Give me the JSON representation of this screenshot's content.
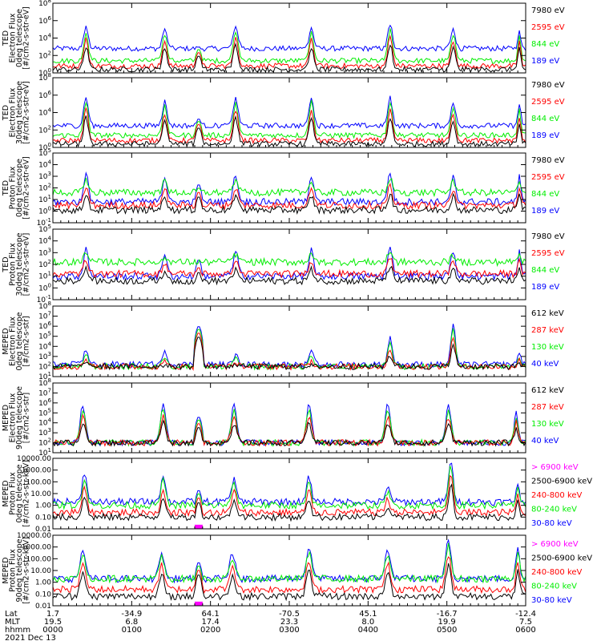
{
  "title": "",
  "date_label": "2021 Dec 13",
  "colors": {
    "black": "#000000",
    "blue": "#0000ff",
    "red": "#ff0000",
    "green": "#00ee00",
    "magenta": "#ff00ff"
  },
  "x_axis": {
    "row_labels": [
      "Lat",
      "MLT",
      "hhmm"
    ],
    "ticks": [
      {
        "lat": "1.7",
        "mlt": "19.5",
        "hhmm": "0000"
      },
      {
        "lat": "-34.9",
        "mlt": "6.8",
        "hhmm": "0100"
      },
      {
        "lat": "64.1",
        "mlt": "17.4",
        "hhmm": "0200"
      },
      {
        "lat": "-70.5",
        "mlt": "23.3",
        "hhmm": "0300"
      },
      {
        "lat": "45.1",
        "mlt": "8.0",
        "hhmm": "0400"
      },
      {
        "lat": "-16.7",
        "mlt": "19.9",
        "hhmm": "0500"
      },
      {
        "lat": "-12.4",
        "mlt": "7.5",
        "hhmm": "0600"
      }
    ]
  },
  "chart_data": [
    {
      "type": "line",
      "instrument": "TED",
      "ylabel": [
        "TED",
        "Electron Flux",
        "0deg telescope",
        "[#/cm2-s-str-eV]"
      ],
      "scale": "log",
      "ytick_labels": [
        "10^0",
        "10^2",
        "10^4",
        "10^6",
        "10^8"
      ],
      "ytick_exponents": [
        0,
        2,
        4,
        6,
        8
      ],
      "ylim_exp": [
        0,
        8
      ],
      "legend": [
        {
          "label": "7980 eV",
          "color": "black"
        },
        {
          "label": "2595 eV",
          "color": "red"
        },
        {
          "label": "844 eV",
          "color": "green"
        },
        {
          "label": "189 eV",
          "color": "blue"
        }
      ],
      "xlim_hours": [
        0,
        6
      ],
      "passes": [
        {
          "center": 0.42,
          "width": 0.12,
          "peak_exp": 5.2
        },
        {
          "center": 1.42,
          "width": 0.12,
          "peak_exp": 5.0
        },
        {
          "center": 2.32,
          "width": 0.13,
          "peak_exp": 5.4
        },
        {
          "center": 3.28,
          "width": 0.12,
          "peak_exp": 5.1
        },
        {
          "center": 4.28,
          "width": 0.12,
          "peak_exp": 5.6
        },
        {
          "center": 5.08,
          "width": 0.12,
          "peak_exp": 5.0
        },
        {
          "center": 5.92,
          "width": 0.08,
          "peak_exp": 4.8
        }
      ],
      "dome": {
        "center": 1.85,
        "width": 0.11,
        "peak_exp": 3.0
      },
      "series_baseline_exp": {
        "blue": 2.8,
        "green": 1.4,
        "red": 0.8,
        "black": 0.4
      }
    },
    {
      "type": "line",
      "instrument": "TED",
      "ylabel": [
        "TED",
        "Electron Flux",
        "30deg telescope",
        "[#/cm2-s-str-eV]"
      ],
      "scale": "log",
      "ytick_labels": [
        "10^0",
        "10^2",
        "10^4",
        "10^6",
        "10^8"
      ],
      "ytick_exponents": [
        0,
        2,
        4,
        6,
        8
      ],
      "ylim_exp": [
        0,
        8
      ],
      "legend": [
        {
          "label": "7980 eV",
          "color": "black"
        },
        {
          "label": "2595 eV",
          "color": "red"
        },
        {
          "label": "844 eV",
          "color": "green"
        },
        {
          "label": "189 eV",
          "color": "blue"
        }
      ],
      "xlim_hours": [
        0,
        6
      ],
      "passes": [
        {
          "center": 0.42,
          "width": 0.12,
          "peak_exp": 5.8
        },
        {
          "center": 1.42,
          "width": 0.12,
          "peak_exp": 5.3
        },
        {
          "center": 2.32,
          "width": 0.13,
          "peak_exp": 5.6
        },
        {
          "center": 3.28,
          "width": 0.12,
          "peak_exp": 5.8
        },
        {
          "center": 4.28,
          "width": 0.12,
          "peak_exp": 5.7
        },
        {
          "center": 5.08,
          "width": 0.12,
          "peak_exp": 5.2
        },
        {
          "center": 5.92,
          "width": 0.08,
          "peak_exp": 4.9
        }
      ],
      "dome": {
        "center": 1.85,
        "width": 0.11,
        "peak_exp": 3.3
      },
      "series_baseline_exp": {
        "blue": 2.5,
        "green": 1.4,
        "red": 0.8,
        "black": 0.4
      }
    },
    {
      "type": "line",
      "instrument": "TED",
      "ylabel": [
        "TED",
        "Proton Flux",
        "0deg telescope",
        "[#/cm2-s-str-eV]"
      ],
      "scale": "log",
      "ytick_labels": [
        "10^-1",
        "10^0",
        "10^1",
        "10^2",
        "10^3",
        "10^4",
        "10^5"
      ],
      "ytick_exponents": [
        -1,
        0,
        1,
        2,
        3,
        4,
        5
      ],
      "ylim_exp": [
        -1,
        5
      ],
      "legend": [
        {
          "label": "7980 eV",
          "color": "black"
        },
        {
          "label": "2595 eV",
          "color": "red"
        },
        {
          "label": "844 eV",
          "color": "green"
        },
        {
          "label": "189 eV",
          "color": "blue"
        }
      ],
      "xlim_hours": [
        0,
        6
      ],
      "passes": [
        {
          "center": 0.42,
          "width": 0.12,
          "peak_exp": 3.2
        },
        {
          "center": 1.42,
          "width": 0.12,
          "peak_exp": 3.0
        },
        {
          "center": 2.32,
          "width": 0.13,
          "peak_exp": 3.1
        },
        {
          "center": 3.28,
          "width": 0.12,
          "peak_exp": 3.0
        },
        {
          "center": 4.28,
          "width": 0.12,
          "peak_exp": 3.3
        },
        {
          "center": 5.08,
          "width": 0.12,
          "peak_exp": 3.0
        },
        {
          "center": 5.92,
          "width": 0.08,
          "peak_exp": 3.1
        }
      ],
      "dome": {
        "center": 1.85,
        "width": 0.11,
        "peak_exp": 2.3
      },
      "series_baseline_exp": {
        "blue": 0.8,
        "green": 1.6,
        "red": 0.5,
        "black": 0.1
      }
    },
    {
      "type": "line",
      "instrument": "TED",
      "ylabel": [
        "TED",
        "Proton Flux",
        "30deg telescope",
        "[#/cm2-s-str-eV]"
      ],
      "scale": "log",
      "ytick_labels": [
        "10^-1",
        "10^0",
        "10^1",
        "10^2",
        "10^3",
        "10^4",
        "10^5"
      ],
      "ytick_exponents": [
        -1,
        0,
        1,
        2,
        3,
        4,
        5
      ],
      "ylim_exp": [
        -1,
        5
      ],
      "legend": [
        {
          "label": "7980 eV",
          "color": "black"
        },
        {
          "label": "2595 eV",
          "color": "red"
        },
        {
          "label": "844 eV",
          "color": "green"
        },
        {
          "label": "189 eV",
          "color": "blue"
        }
      ],
      "xlim_hours": [
        0,
        6
      ],
      "passes": [
        {
          "center": 0.42,
          "width": 0.12,
          "peak_exp": 3.5
        },
        {
          "center": 1.42,
          "width": 0.12,
          "peak_exp": 3.0
        },
        {
          "center": 2.32,
          "width": 0.13,
          "peak_exp": 3.2
        },
        {
          "center": 3.28,
          "width": 0.12,
          "peak_exp": 3.2
        },
        {
          "center": 4.28,
          "width": 0.12,
          "peak_exp": 3.6
        },
        {
          "center": 5.08,
          "width": 0.12,
          "peak_exp": 3.2
        },
        {
          "center": 5.92,
          "width": 0.08,
          "peak_exp": 3.3
        }
      ],
      "dome": {
        "center": 1.85,
        "width": 0.11,
        "peak_exp": 2.4
      },
      "series_baseline_exp": {
        "blue": 1.0,
        "green": 2.2,
        "red": 1.2,
        "black": 0.6
      }
    },
    {
      "type": "line",
      "instrument": "MEPED",
      "ylabel": [
        "MEPED",
        "Electron Flux",
        "0deg telescope",
        "[#/cm2-s-str]"
      ],
      "scale": "log",
      "ytick_labels": [
        "10^1",
        "10^2",
        "10^3",
        "10^4",
        "10^5",
        "10^6",
        "10^7",
        "10^8"
      ],
      "ytick_exponents": [
        1,
        2,
        3,
        4,
        5,
        6,
        7,
        8
      ],
      "ylim_exp": [
        1,
        8
      ],
      "legend": [
        {
          "label": "612 keV",
          "color": "black"
        },
        {
          "label": "287 keV",
          "color": "red"
        },
        {
          "label": "130 keV",
          "color": "green"
        },
        {
          "label": "40 keV",
          "color": "blue"
        }
      ],
      "xlim_hours": [
        0,
        6
      ],
      "passes": [
        {
          "center": 0.42,
          "width": 0.12,
          "peak_exp": 3.6
        },
        {
          "center": 1.42,
          "width": 0.12,
          "peak_exp": 3.4
        },
        {
          "center": 2.32,
          "width": 0.13,
          "peak_exp": 3.2
        },
        {
          "center": 3.28,
          "width": 0.12,
          "peak_exp": 3.4
        },
        {
          "center": 4.28,
          "width": 0.12,
          "peak_exp": 4.8
        },
        {
          "center": 5.08,
          "width": 0.12,
          "peak_exp": 6.2
        },
        {
          "center": 5.92,
          "width": 0.08,
          "peak_exp": 3.5
        }
      ],
      "dome": {
        "center": 1.85,
        "width": 0.11,
        "peak_exp": 6.0
      },
      "series_baseline_exp": {
        "blue": 2.2,
        "green": 2.0,
        "red": 2.0,
        "black": 2.0
      }
    },
    {
      "type": "line",
      "instrument": "MEPED",
      "ylabel": [
        "MEPED",
        "Electron Flux",
        "90deg telescope",
        "[#/cm2-s-str]"
      ],
      "scale": "log",
      "ytick_labels": [
        "10^1",
        "10^2",
        "10^3",
        "10^4",
        "10^5",
        "10^6",
        "10^7",
        "10^8"
      ],
      "ytick_exponents": [
        1,
        2,
        3,
        4,
        5,
        6,
        7,
        8
      ],
      "ylim_exp": [
        1,
        8
      ],
      "legend": [
        {
          "label": "612 keV",
          "color": "black"
        },
        {
          "label": "287 keV",
          "color": "red"
        },
        {
          "label": "130 keV",
          "color": "green"
        },
        {
          "label": "40 keV",
          "color": "blue"
        }
      ],
      "xlim_hours": [
        0,
        6
      ],
      "passes": [
        {
          "center": 0.38,
          "width": 0.14,
          "peak_exp": 5.8
        },
        {
          "center": 1.4,
          "width": 0.14,
          "peak_exp": 6.0
        },
        {
          "center": 2.3,
          "width": 0.14,
          "peak_exp": 5.9
        },
        {
          "center": 3.25,
          "width": 0.14,
          "peak_exp": 5.8
        },
        {
          "center": 4.25,
          "width": 0.14,
          "peak_exp": 5.9
        },
        {
          "center": 5.02,
          "width": 0.14,
          "peak_exp": 5.7
        },
        {
          "center": 5.88,
          "width": 0.1,
          "peak_exp": 5.2
        }
      ],
      "dome": {
        "center": 1.85,
        "width": 0.11,
        "peak_exp": 4.6
      },
      "series_baseline_exp": {
        "blue": 2.0,
        "green": 2.0,
        "red": 2.0,
        "black": 2.0
      }
    },
    {
      "type": "line",
      "instrument": "MEPED",
      "ylabel": [
        "MEPED",
        "Proton Flux",
        "0deg telescope",
        "[#/cm2-s-str-keV]"
      ],
      "scale": "log",
      "ytick_labels": [
        "0.01",
        "0.10",
        "1.00",
        "10.00",
        "100.00",
        "1000.00",
        "10000.00"
      ],
      "ytick_exponents": [
        -2,
        -1,
        0,
        1,
        2,
        3,
        4
      ],
      "ylim_exp": [
        -2,
        4
      ],
      "legend": [
        {
          "label": "> 6900 keV",
          "color": "magenta"
        },
        {
          "label": "2500-6900 keV",
          "color": "black"
        },
        {
          "label": "240-800 keV",
          "color": "red"
        },
        {
          "label": "80-240 keV",
          "color": "green"
        },
        {
          "label": "30-80 keV",
          "color": "blue"
        }
      ],
      "xlim_hours": [
        0,
        6
      ],
      "passes": [
        {
          "center": 0.4,
          "width": 0.12,
          "peak_exp": 2.8
        },
        {
          "center": 1.4,
          "width": 0.12,
          "peak_exp": 2.6
        },
        {
          "center": 2.3,
          "width": 0.13,
          "peak_exp": 2.3
        },
        {
          "center": 3.25,
          "width": 0.12,
          "peak_exp": 2.4
        },
        {
          "center": 4.25,
          "width": 0.12,
          "peak_exp": 1.5
        },
        {
          "center": 5.05,
          "width": 0.12,
          "peak_exp": 3.9
        },
        {
          "center": 5.9,
          "width": 0.08,
          "peak_exp": 2.0
        }
      ],
      "dome": {
        "center": 1.85,
        "width": 0.11,
        "peak_exp": 1.3
      },
      "series_baseline_exp": {
        "blue": 0.3,
        "green": 0.0,
        "red": -0.6,
        "black": -1.0
      }
    },
    {
      "type": "line",
      "instrument": "MEPED",
      "ylabel": [
        "MEPED",
        "Proton Flux",
        "90deg telescope",
        "[#/cm2-s-str-keV]"
      ],
      "scale": "log",
      "ytick_labels": [
        "0.01",
        "0.10",
        "1.00",
        "10.00",
        "100.00",
        "1000.00",
        "10000.00"
      ],
      "ytick_exponents": [
        -2,
        -1,
        0,
        1,
        2,
        3,
        4
      ],
      "ylim_exp": [
        -2,
        4
      ],
      "legend": [
        {
          "label": "> 6900 keV",
          "color": "magenta"
        },
        {
          "label": "2500-6900 keV",
          "color": "black"
        },
        {
          "label": "240-800 keV",
          "color": "red"
        },
        {
          "label": "80-240 keV",
          "color": "green"
        },
        {
          "label": "30-80 keV",
          "color": "blue"
        }
      ],
      "xlim_hours": [
        0,
        6
      ],
      "passes": [
        {
          "center": 0.38,
          "width": 0.14,
          "peak_exp": 2.8
        },
        {
          "center": 1.38,
          "width": 0.14,
          "peak_exp": 2.6
        },
        {
          "center": 2.28,
          "width": 0.14,
          "peak_exp": 2.5
        },
        {
          "center": 3.25,
          "width": 0.14,
          "peak_exp": 3.0
        },
        {
          "center": 4.25,
          "width": 0.14,
          "peak_exp": 2.8
        },
        {
          "center": 5.02,
          "width": 0.14,
          "peak_exp": 3.6
        },
        {
          "center": 5.9,
          "width": 0.1,
          "peak_exp": 2.9
        }
      ],
      "dome": {
        "center": 1.85,
        "width": 0.11,
        "peak_exp": 1.7
      },
      "series_baseline_exp": {
        "blue": 0.3,
        "green": 0.3,
        "red": -0.6,
        "black": -1.2
      }
    }
  ]
}
